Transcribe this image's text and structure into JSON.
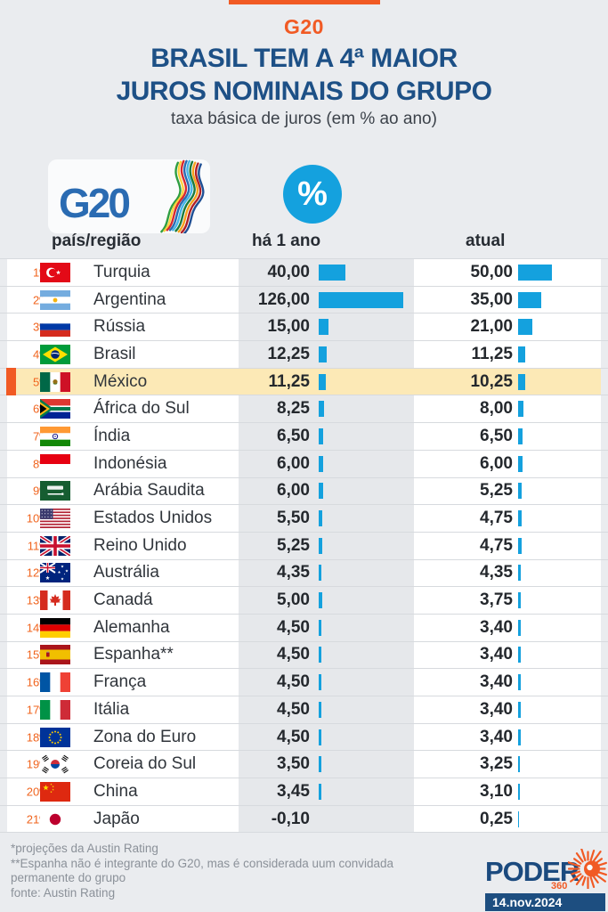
{
  "colors": {
    "accent_orange": "#f15a24",
    "bar_blue": "#14a1de",
    "title_navy": "#1d5086",
    "highlight_yellow": "#fce9b6",
    "brand_navy": "#1b4a7e"
  },
  "header": {
    "kicker": "G20",
    "title_line1": "BRASIL TEM A 4ª MAIOR",
    "title_line2": "JUROS NOMINAIS DO GRUPO",
    "subtitle": "taxa básica de juros (em % ao ano)"
  },
  "logos": {
    "g20_text": "G20",
    "percent_symbol": "%"
  },
  "table": {
    "columns": {
      "country": "país/região",
      "year_ago": "há 1 ano",
      "current": "atual"
    },
    "rows": [
      {
        "rank": "1º",
        "flag": "turquia",
        "country": "Turquia",
        "year_ago": "40,00",
        "current": "50,00",
        "year_ago_num": 40,
        "current_num": 50,
        "highlight": false
      },
      {
        "rank": "2º",
        "flag": "argentina",
        "country": "Argentina",
        "year_ago": "126,00",
        "current": "35,00",
        "year_ago_num": 126,
        "current_num": 35,
        "highlight": false
      },
      {
        "rank": "3º",
        "flag": "russia",
        "country": "Rússia",
        "year_ago": "15,00",
        "current": "21,00",
        "year_ago_num": 15,
        "current_num": 21,
        "highlight": false
      },
      {
        "rank": "4º",
        "flag": "brasil",
        "country": "Brasil",
        "year_ago": "12,25",
        "current": "11,25",
        "year_ago_num": 12.25,
        "current_num": 11.25,
        "highlight": false
      },
      {
        "rank": "5º",
        "flag": "mexico",
        "country": "México",
        "year_ago": "11,25",
        "current": "10,25",
        "year_ago_num": 11.25,
        "current_num": 10.25,
        "highlight": true
      },
      {
        "rank": "6º",
        "flag": "africa-do-sul",
        "country": "África do Sul",
        "year_ago": "8,25",
        "current": "8,00",
        "year_ago_num": 8.25,
        "current_num": 8,
        "highlight": false
      },
      {
        "rank": "7º",
        "flag": "india",
        "country": "Índia",
        "year_ago": "6,50",
        "current": "6,50",
        "year_ago_num": 6.5,
        "current_num": 6.5,
        "highlight": false
      },
      {
        "rank": "8º",
        "flag": "indonesia",
        "country": "Indonésia",
        "year_ago": "6,00",
        "current": "6,00",
        "year_ago_num": 6,
        "current_num": 6,
        "highlight": false
      },
      {
        "rank": "9º",
        "flag": "arabia-saudita",
        "country": "Arábia Saudita",
        "year_ago": "6,00",
        "current": "5,25",
        "year_ago_num": 6,
        "current_num": 5.25,
        "highlight": false
      },
      {
        "rank": "10º",
        "flag": "estados-unidos",
        "country": "Estados Unidos",
        "year_ago": "5,50",
        "current": "4,75",
        "year_ago_num": 5.5,
        "current_num": 4.75,
        "highlight": false
      },
      {
        "rank": "11º",
        "flag": "reino-unido",
        "country": "Reino Unido",
        "year_ago": "5,25",
        "current": "4,75",
        "year_ago_num": 5.25,
        "current_num": 4.75,
        "highlight": false
      },
      {
        "rank": "12º",
        "flag": "australia",
        "country": "Austrália",
        "year_ago": "4,35",
        "current": "4,35",
        "year_ago_num": 4.35,
        "current_num": 4.35,
        "highlight": false
      },
      {
        "rank": "13º",
        "flag": "canada",
        "country": "Canadá",
        "year_ago": "5,00",
        "current": "3,75",
        "year_ago_num": 5,
        "current_num": 3.75,
        "highlight": false
      },
      {
        "rank": "14º",
        "flag": "alemanha",
        "country": "Alemanha",
        "year_ago": "4,50",
        "current": "3,40",
        "year_ago_num": 4.5,
        "current_num": 3.4,
        "highlight": false
      },
      {
        "rank": "15º",
        "flag": "espanha",
        "country": "Espanha**",
        "year_ago": "4,50",
        "current": "3,40",
        "year_ago_num": 4.5,
        "current_num": 3.4,
        "highlight": false
      },
      {
        "rank": "16º",
        "flag": "franca",
        "country": "França",
        "year_ago": "4,50",
        "current": "3,40",
        "year_ago_num": 4.5,
        "current_num": 3.4,
        "highlight": false
      },
      {
        "rank": "17º",
        "flag": "italia",
        "country": "Itália",
        "year_ago": "4,50",
        "current": "3,40",
        "year_ago_num": 4.5,
        "current_num": 3.4,
        "highlight": false
      },
      {
        "rank": "18º",
        "flag": "zona-do-euro",
        "country": "Zona do Euro",
        "year_ago": "4,50",
        "current": "3,40",
        "year_ago_num": 4.5,
        "current_num": 3.4,
        "highlight": false
      },
      {
        "rank": "19º",
        "flag": "coreia-do-sul",
        "country": "Coreia do Sul",
        "year_ago": "3,50",
        "current": "3,25",
        "year_ago_num": 3.5,
        "current_num": 3.25,
        "highlight": false
      },
      {
        "rank": "20º",
        "flag": "china",
        "country": "China",
        "year_ago": "3,45",
        "current": "3,10",
        "year_ago_num": 3.45,
        "current_num": 3.1,
        "highlight": false
      },
      {
        "rank": "21º",
        "flag": "japao",
        "country": "Japão",
        "year_ago": "-0,10",
        "current": "0,25",
        "year_ago_num": -0.1,
        "current_num": 0.25,
        "highlight": false
      }
    ]
  },
  "footer": {
    "note1": "*projeções da Austin Rating",
    "note2": "**Espanha não é integrante do G20, mas é considerada uum convidada permanente do grupo",
    "source": "fonte: Austin Rating",
    "brand_name": "PODER",
    "brand_sub": "360",
    "date": "14.nov.2024"
  },
  "chart_data": {
    "type": "bar",
    "orientation": "horizontal",
    "title": "BRASIL TEM A 4ª MAIOR JUROS NOMINAIS DO GRUPO",
    "subtitle": "taxa básica de juros (em % ao ano)",
    "categories": [
      "Turquia",
      "Argentina",
      "Rússia",
      "Brasil",
      "México",
      "África do Sul",
      "Índia",
      "Indonésia",
      "Arábia Saudita",
      "Estados Unidos",
      "Reino Unido",
      "Austrália",
      "Canadá",
      "Alemanha",
      "Espanha**",
      "França",
      "Itália",
      "Zona do Euro",
      "Coreia do Sul",
      "China",
      "Japão"
    ],
    "series": [
      {
        "name": "há 1 ano",
        "values": [
          40,
          126,
          15,
          12.25,
          11.25,
          8.25,
          6.5,
          6,
          6,
          5.5,
          5.25,
          4.35,
          5,
          4.5,
          4.5,
          4.5,
          4.5,
          4.5,
          3.5,
          3.45,
          -0.1
        ]
      },
      {
        "name": "atual",
        "values": [
          50,
          35,
          21,
          11.25,
          10.25,
          8,
          6.5,
          6,
          5.25,
          4.75,
          4.75,
          4.35,
          3.75,
          3.4,
          3.4,
          3.4,
          3.4,
          3.4,
          3.25,
          3.1,
          0.25
        ]
      }
    ],
    "highlight_category": "México",
    "value_unit": "% ao ano",
    "legend_position": "column-headers",
    "grid": false
  }
}
